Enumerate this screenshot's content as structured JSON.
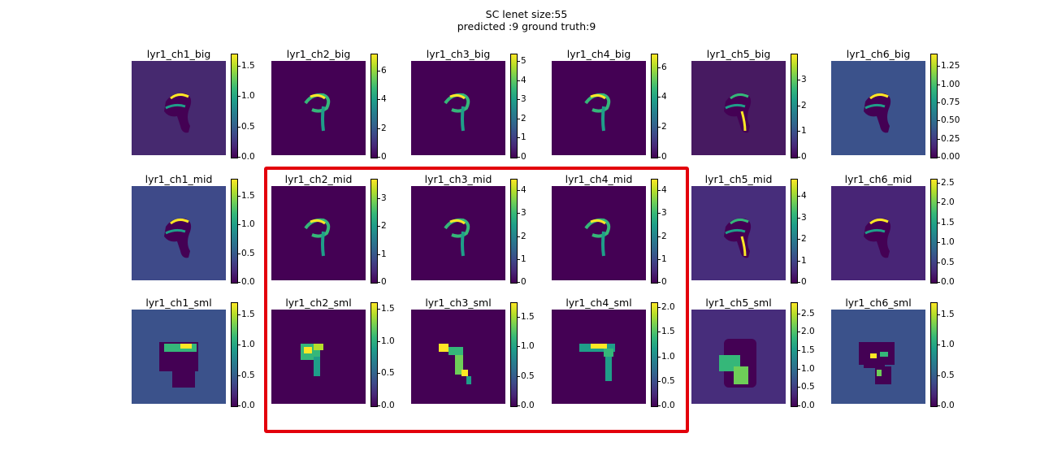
{
  "figure": {
    "title_line1": "SC lenet size:55",
    "title_line2": "predicted :9 ground truth:9"
  },
  "colormap": "viridis",
  "highlight_color": "#e3000b",
  "chart_data": {
    "type": "heatmap",
    "rows": [
      [
        {
          "title": "lyr1_ch1_big",
          "bg": "#46296f",
          "vmax": 1.7,
          "ticks": [
            "0.0",
            "0.5",
            "1.0",
            "1.5"
          ],
          "tick_vals": [
            0,
            0.5,
            1.0,
            1.5
          ]
        },
        {
          "title": "lyr1_ch2_big",
          "bg": "#440154",
          "vmax": 7.2,
          "ticks": [
            "0",
            "2",
            "4",
            "6"
          ],
          "tick_vals": [
            0,
            2,
            4,
            6
          ]
        },
        {
          "title": "lyr1_ch3_big",
          "bg": "#440154",
          "vmax": 5.4,
          "ticks": [
            "0",
            "1",
            "2",
            "3",
            "4",
            "5"
          ],
          "tick_vals": [
            0,
            1,
            2,
            3,
            4,
            5
          ]
        },
        {
          "title": "lyr1_ch4_big",
          "bg": "#440154",
          "vmax": 6.9,
          "ticks": [
            "0",
            "2",
            "4",
            "6"
          ],
          "tick_vals": [
            0,
            2,
            4,
            6
          ]
        },
        {
          "title": "lyr1_ch5_big",
          "bg": "#471a61",
          "vmax": 4.0,
          "ticks": [
            "0",
            "1",
            "2",
            "3"
          ],
          "tick_vals": [
            0,
            1,
            2,
            3
          ]
        },
        {
          "title": "lyr1_ch6_big",
          "bg": "#3b528b",
          "vmax": 1.42,
          "ticks": [
            "0.00",
            "0.25",
            "0.50",
            "0.75",
            "1.00",
            "1.25"
          ],
          "tick_vals": [
            0,
            0.25,
            0.5,
            0.75,
            1.0,
            1.25
          ]
        }
      ],
      [
        {
          "title": "lyr1_ch1_mid",
          "bg": "#3e4a89",
          "vmax": 1.8,
          "ticks": [
            "0.0",
            "0.5",
            "1.0",
            "1.5"
          ],
          "tick_vals": [
            0,
            0.5,
            1.0,
            1.5
          ]
        },
        {
          "title": "lyr1_ch2_mid",
          "bg": "#440154",
          "vmax": 3.7,
          "ticks": [
            "0",
            "1",
            "2",
            "3"
          ],
          "tick_vals": [
            0,
            1,
            2,
            3
          ]
        },
        {
          "title": "lyr1_ch3_mid",
          "bg": "#440154",
          "vmax": 4.5,
          "ticks": [
            "0",
            "1",
            "2",
            "3",
            "4"
          ],
          "tick_vals": [
            0,
            1,
            2,
            3,
            4
          ]
        },
        {
          "title": "lyr1_ch4_mid",
          "bg": "#440154",
          "vmax": 4.5,
          "ticks": [
            "0",
            "1",
            "2",
            "3",
            "4"
          ],
          "tick_vals": [
            0,
            1,
            2,
            3,
            4
          ]
        },
        {
          "title": "lyr1_ch5_mid",
          "bg": "#472d7b",
          "vmax": 4.8,
          "ticks": [
            "0",
            "1",
            "2",
            "3",
            "4"
          ],
          "tick_vals": [
            0,
            1,
            2,
            3,
            4
          ]
        },
        {
          "title": "lyr1_ch6_mid",
          "bg": "#482576",
          "vmax": 2.6,
          "ticks": [
            "0.0",
            "0.5",
            "1.0",
            "1.5",
            "2.0",
            "2.5"
          ],
          "tick_vals": [
            0,
            0.5,
            1.0,
            1.5,
            2.0,
            2.5
          ]
        }
      ],
      [
        {
          "title": "lyr1_ch1_sml",
          "bg": "#3b528b",
          "vmax": 1.7,
          "ticks": [
            "0.0",
            "0.5",
            "1.0",
            "1.5"
          ],
          "tick_vals": [
            0,
            0.5,
            1.0,
            1.5
          ]
        },
        {
          "title": "lyr1_ch2_sml",
          "bg": "#440154",
          "vmax": 1.6,
          "ticks": [
            "0.0",
            "0.5",
            "1.0",
            "1.5"
          ],
          "tick_vals": [
            0,
            0.5,
            1.0,
            1.5
          ]
        },
        {
          "title": "lyr1_ch3_sml",
          "bg": "#440154",
          "vmax": 1.75,
          "ticks": [
            "0.0",
            "0.5",
            "1.0",
            "1.5"
          ],
          "tick_vals": [
            0,
            0.5,
            1.0,
            1.5
          ]
        },
        {
          "title": "lyr1_ch4_sml",
          "bg": "#440154",
          "vmax": 2.1,
          "ticks": [
            "0.0",
            "0.5",
            "1.0",
            "1.5",
            "2.0"
          ],
          "tick_vals": [
            0,
            0.5,
            1.0,
            1.5,
            2.0
          ]
        },
        {
          "title": "lyr1_ch5_sml",
          "bg": "#472d7b",
          "vmax": 2.8,
          "ticks": [
            "0.0",
            "0.5",
            "1.0",
            "1.5",
            "2.0",
            "2.5"
          ],
          "tick_vals": [
            0,
            0.5,
            1.0,
            1.5,
            2.0,
            2.5
          ]
        },
        {
          "title": "lyr1_ch6_sml",
          "bg": "#3b528b",
          "vmax": 1.7,
          "ticks": [
            "0.0",
            "0.5",
            "1.0",
            "1.5"
          ],
          "tick_vals": [
            0,
            0.5,
            1.0,
            1.5
          ]
        }
      ]
    ]
  }
}
